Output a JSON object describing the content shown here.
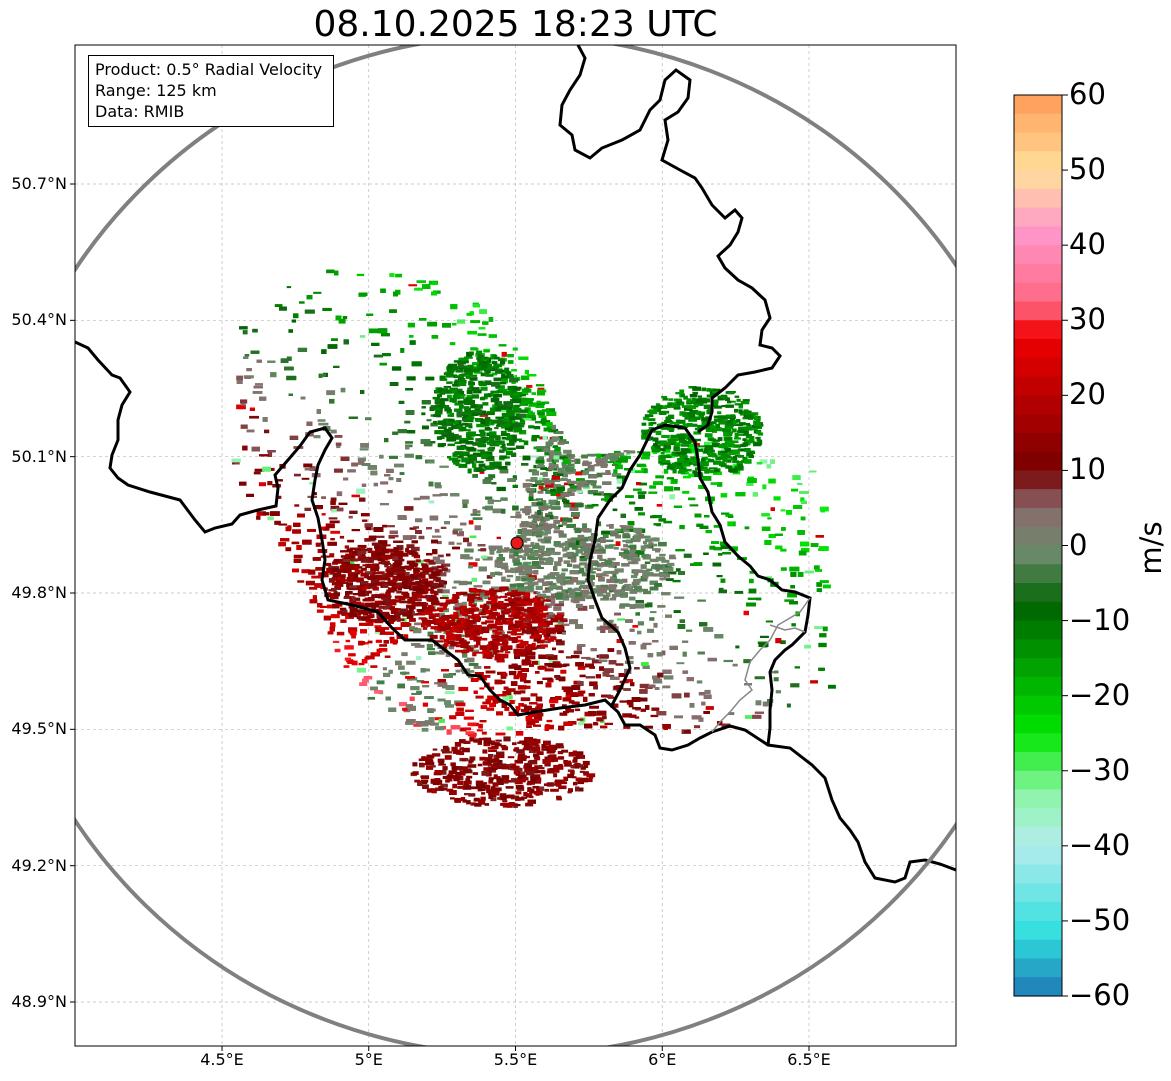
{
  "title": "08.10.2025 18:23 UTC",
  "info_box": {
    "product": "Product: 0.5° Radial Velocity",
    "range": "Range: 125 km",
    "data": "Data: RMIB"
  },
  "axes": {
    "lat_ticks": [
      "50.7°N",
      "50.4°N",
      "50.1°N",
      "49.8°N",
      "49.5°N",
      "49.2°N",
      "48.9°N"
    ],
    "lon_ticks": [
      "4.5°E",
      "5°E",
      "5.5°E",
      "6°E",
      "6.5°E"
    ],
    "lat_values": [
      50.7,
      50.4,
      50.1,
      49.8,
      49.5,
      49.2,
      48.9
    ],
    "lon_values": [
      4.5,
      5.0,
      5.5,
      6.0,
      6.5
    ],
    "lat_range": [
      48.8,
      50.98
    ],
    "lon_range": [
      4.0,
      7.0
    ]
  },
  "radar_site": {
    "lat": 49.915,
    "lon": 5.505
  },
  "colorbar": {
    "label": "m/s",
    "ticks": [
      "60",
      "50",
      "40",
      "30",
      "20",
      "10",
      "0",
      "−10",
      "−20",
      "−30",
      "−40",
      "−50",
      "−60"
    ],
    "range": [
      -60,
      60
    ],
    "colors": {
      "approaching_strong": "#1f77b4",
      "approaching_cyan": "#2fdede",
      "approaching_light": "#b4ecec",
      "approaching_green_light": "#8df5a6",
      "approaching_green": "#00e600",
      "approaching_green_dark": "#006400",
      "zero_green": "#6b8a6b",
      "zero_mauve": "#8a6a6e",
      "receding_dark": "#780000",
      "receding_red": "#f00000",
      "receding_pink": "#ff6680",
      "receding_lightpink": "#ff99cc",
      "receding_peach": "#ffe09a",
      "receding_orange": "#ff9955"
    }
  },
  "colors": {
    "range_ring": "#808080",
    "border": "#000000",
    "grid": "#bbbbbb",
    "site_marker": "#e81b1b"
  }
}
